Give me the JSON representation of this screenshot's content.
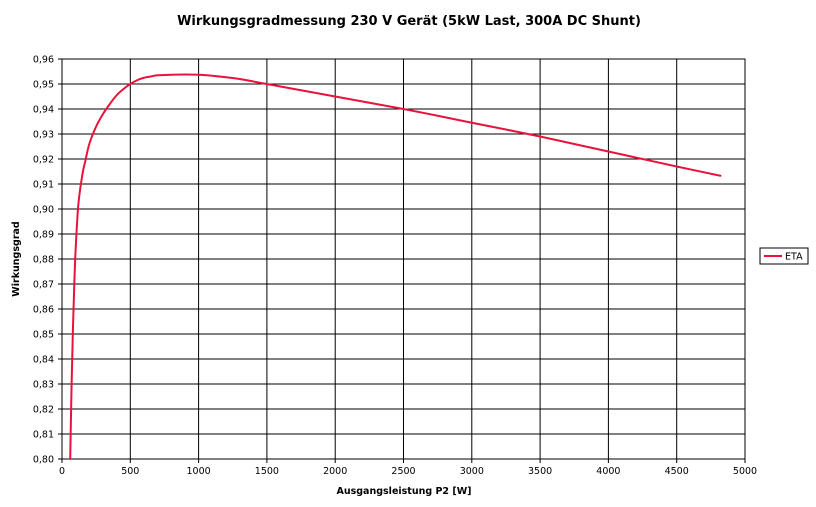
{
  "chart_data": {
    "type": "line",
    "title": "Wirkungsgradmessung 230 V Gerät (5kW Last, 300A DC Shunt)",
    "xlabel": "Ausgangsleistung P2 [W]",
    "ylabel": "Wirkungsgrad",
    "xlim": [
      0,
      5000
    ],
    "ylim": [
      0.8,
      0.96
    ],
    "x_ticks": [
      "0",
      "500",
      "1000",
      "1500",
      "2000",
      "2500",
      "3000",
      "3500",
      "4000",
      "4500",
      "5000"
    ],
    "y_ticks": [
      "0,80",
      "0,81",
      "0,82",
      "0,83",
      "0,84",
      "0,85",
      "0,86",
      "0,87",
      "0,88",
      "0,89",
      "0,90",
      "0,91",
      "0,92",
      "0,93",
      "0,94",
      "0,95",
      "0,96"
    ],
    "grid": true,
    "legend_position": "right",
    "series": [
      {
        "name": "ETA",
        "color": "#e8123c",
        "x": [
          60,
          70,
          80,
          90,
          100,
          120,
          150,
          170,
          200,
          250,
          300,
          350,
          400,
          450,
          500,
          550,
          600,
          650,
          700,
          800,
          900,
          1000,
          1100,
          1200,
          1300,
          1500,
          1750,
          2000,
          2250,
          2500,
          2750,
          3000,
          3250,
          3500,
          3750,
          4000,
          4250,
          4500,
          4820
        ],
        "y": [
          0.8,
          0.829,
          0.852,
          0.87,
          0.884,
          0.902,
          0.914,
          0.919,
          0.926,
          0.933,
          0.938,
          0.942,
          0.9455,
          0.948,
          0.95,
          0.9515,
          0.9525,
          0.953,
          0.9535,
          0.9537,
          0.9538,
          0.9537,
          0.9533,
          0.9527,
          0.952,
          0.95,
          0.9475,
          0.945,
          0.9425,
          0.94,
          0.9373,
          0.9345,
          0.9318,
          0.929,
          0.926,
          0.923,
          0.92,
          0.917,
          0.9133
        ]
      }
    ]
  }
}
